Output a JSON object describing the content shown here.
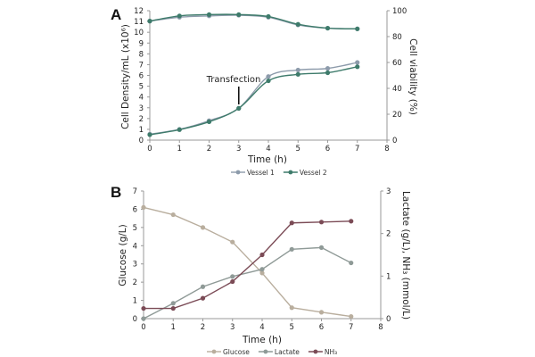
{
  "chart_data": [
    {
      "panel": "A",
      "type": "line",
      "xlabel": "Time (h)",
      "ylabel": "Cell Density/mL (x10⁶)",
      "y2label": "Cell viability (%)",
      "xlim": [
        0,
        8
      ],
      "ylim": [
        0,
        12
      ],
      "y2lim": [
        0,
        100
      ],
      "xticks": [
        0,
        1,
        2,
        3,
        4,
        5,
        6,
        7,
        8
      ],
      "yticks": [
        0,
        1,
        2,
        3,
        4,
        5,
        6,
        7,
        8,
        9,
        10,
        11,
        12
      ],
      "y2ticks": [
        0,
        20,
        40,
        60,
        80,
        100
      ],
      "annotation": {
        "text": "Transfection",
        "x": 3
      },
      "legend": "bottom",
      "grid": false,
      "x": [
        0,
        1,
        2,
        3,
        4,
        5,
        6,
        7
      ],
      "series": [
        {
          "name": "Vessel 1",
          "color": "#8d9bab",
          "axis": "left",
          "values": [
            0.55,
            1.0,
            1.8,
            2.95,
            5.9,
            6.5,
            6.65,
            7.2
          ]
        },
        {
          "name": "Vessel 2",
          "color": "#3e7b6b",
          "axis": "left",
          "values": [
            0.5,
            0.97,
            1.7,
            2.95,
            5.5,
            6.1,
            6.25,
            6.8
          ]
        },
        {
          "name": "Vessel 1",
          "color": "#8d9bab",
          "axis": "right",
          "values": [
            92,
            95,
            96,
            96.5,
            95,
            89,
            86.5,
            86
          ]
        },
        {
          "name": "Vessel 2",
          "color": "#3e7b6b",
          "axis": "right",
          "values": [
            92,
            96,
            97,
            97,
            95.5,
            89.5,
            86.5,
            86
          ]
        }
      ]
    },
    {
      "panel": "B",
      "type": "line",
      "xlabel": "Time (h)",
      "ylabel": "Glucose (g/L)",
      "y2label": "Lactate (g/L), NH₃ (mmol/L)",
      "xlim": [
        0,
        8
      ],
      "ylim": [
        0,
        7
      ],
      "y2lim": [
        0,
        3
      ],
      "xticks": [
        0,
        1,
        2,
        3,
        4,
        5,
        6,
        7,
        8
      ],
      "yticks": [
        0,
        1,
        2,
        3,
        4,
        5,
        6,
        7
      ],
      "y2ticks": [
        0,
        1,
        2,
        3
      ],
      "legend": "bottom",
      "grid": false,
      "x": [
        0,
        1,
        2,
        3,
        4,
        5,
        6,
        7
      ],
      "series": [
        {
          "name": "Glucose",
          "color": "#b9ae9e",
          "axis": "left",
          "values": [
            6.1,
            5.7,
            5.0,
            4.2,
            2.5,
            0.6,
            0.35,
            0.12
          ]
        },
        {
          "name": "Lactate",
          "color": "#8f9a97",
          "axis": "right",
          "values": [
            0,
            0.36,
            0.75,
            0.99,
            1.16,
            1.63,
            1.67,
            1.31
          ]
        },
        {
          "name": "NH₃",
          "color": "#7b4b56",
          "axis": "right",
          "values": [
            0.24,
            0.24,
            0.48,
            0.87,
            1.5,
            2.25,
            2.27,
            2.29
          ]
        }
      ]
    }
  ]
}
